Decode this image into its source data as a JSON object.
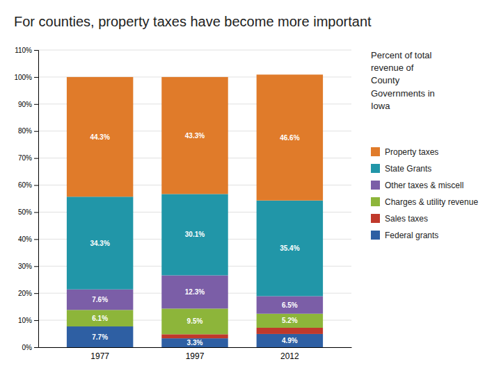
{
  "chart_data": {
    "type": "bar",
    "stacked": true,
    "title": "For counties, property taxes have become more important",
    "annotation": "Percent of total\nrevenue of\nCounty\nGovernments in\nIowa",
    "categories": [
      "1977",
      "1997",
      "2012"
    ],
    "series": [
      {
        "name": "Federal grants",
        "color": "#2E5FA3",
        "values": [
          7.7,
          3.3,
          4.9
        ],
        "value_labels": [
          "7.7%",
          "3.3%",
          "4.9%"
        ]
      },
      {
        "name": "Sales taxes",
        "color": "#C0392B",
        "values": [
          0.0,
          1.5,
          2.3
        ]
      },
      {
        "name": "Charges & utility revenue",
        "color": "#8DB53A",
        "values": [
          6.1,
          9.5,
          5.2
        ],
        "value_labels": [
          "6.1%",
          "9.5%",
          "5.2%"
        ]
      },
      {
        "name": "Other taxes & miscell",
        "color": "#7B5EA7",
        "values": [
          7.6,
          12.3,
          6.5
        ],
        "value_labels": [
          "7.6%",
          "12.3%",
          "6.5%"
        ]
      },
      {
        "name": "State Grants",
        "color": "#2196A8",
        "values": [
          34.3,
          30.1,
          35.4
        ],
        "value_labels": [
          "34.3%",
          "30.1%",
          "35.4%"
        ]
      },
      {
        "name": "Property taxes",
        "color": "#E07B2A",
        "values": [
          44.3,
          43.3,
          46.6
        ],
        "value_labels": [
          "44.3%",
          "43.3%",
          "46.6%"
        ]
      }
    ],
    "ylim": [
      0,
      110
    ],
    "yticks": [
      {
        "value": 0,
        "label": "0%"
      },
      {
        "value": 10,
        "label": "10%"
      },
      {
        "value": 20,
        "label": "20%"
      },
      {
        "value": 30,
        "label": "30%"
      },
      {
        "value": 40,
        "label": "40%"
      },
      {
        "value": 50,
        "label": "50%"
      },
      {
        "value": 60,
        "label": "60%"
      },
      {
        "value": 70,
        "label": "70%"
      },
      {
        "value": 80,
        "label": "80%"
      },
      {
        "value": 90,
        "label": "90%"
      },
      {
        "value": 100,
        "label": "100%"
      },
      {
        "value": 110,
        "label": "110%"
      }
    ],
    "grid": true,
    "data_labels": true,
    "legend": "right"
  }
}
